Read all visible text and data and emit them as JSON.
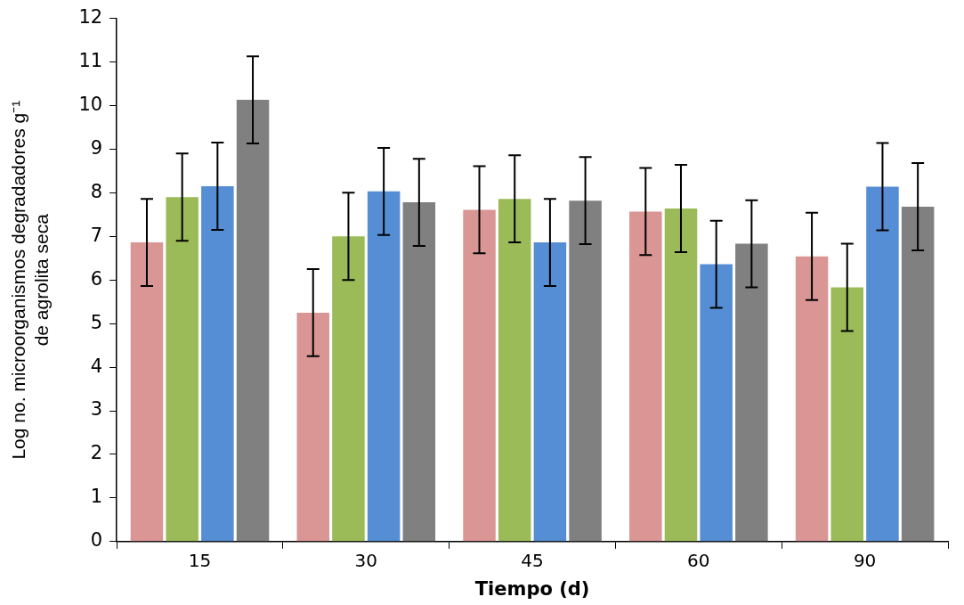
{
  "chart_data": {
    "type": "bar",
    "xlabel": "Tiempo (d)",
    "ylabel": "Log no. microorganismos degradadores g⁻¹\nde agrolita seca",
    "categories": [
      "15",
      "30",
      "45",
      "60",
      "90"
    ],
    "series": [
      {
        "color": "#d99694",
        "values": [
          6.86,
          5.25,
          7.61,
          7.57,
          6.54
        ],
        "errors": [
          1,
          1,
          1,
          1,
          1
        ]
      },
      {
        "color": "#9bbb59",
        "values": [
          7.9,
          7.0,
          7.86,
          7.64,
          5.83
        ],
        "errors": [
          1,
          1,
          1,
          1,
          1
        ]
      },
      {
        "color": "#558ed5",
        "values": [
          8.15,
          8.03,
          6.86,
          6.36,
          8.14
        ],
        "errors": [
          1,
          1,
          1,
          1,
          1
        ]
      },
      {
        "color": "#808080",
        "values": [
          10.13,
          7.78,
          7.82,
          6.83,
          7.68
        ],
        "errors": [
          1,
          1,
          1,
          1,
          1
        ]
      }
    ],
    "ylim": [
      0,
      12
    ],
    "yticks": [
      0,
      1,
      2,
      3,
      4,
      5,
      6,
      7,
      8,
      9,
      10,
      11,
      12
    ],
    "grid": false,
    "legend": false
  }
}
